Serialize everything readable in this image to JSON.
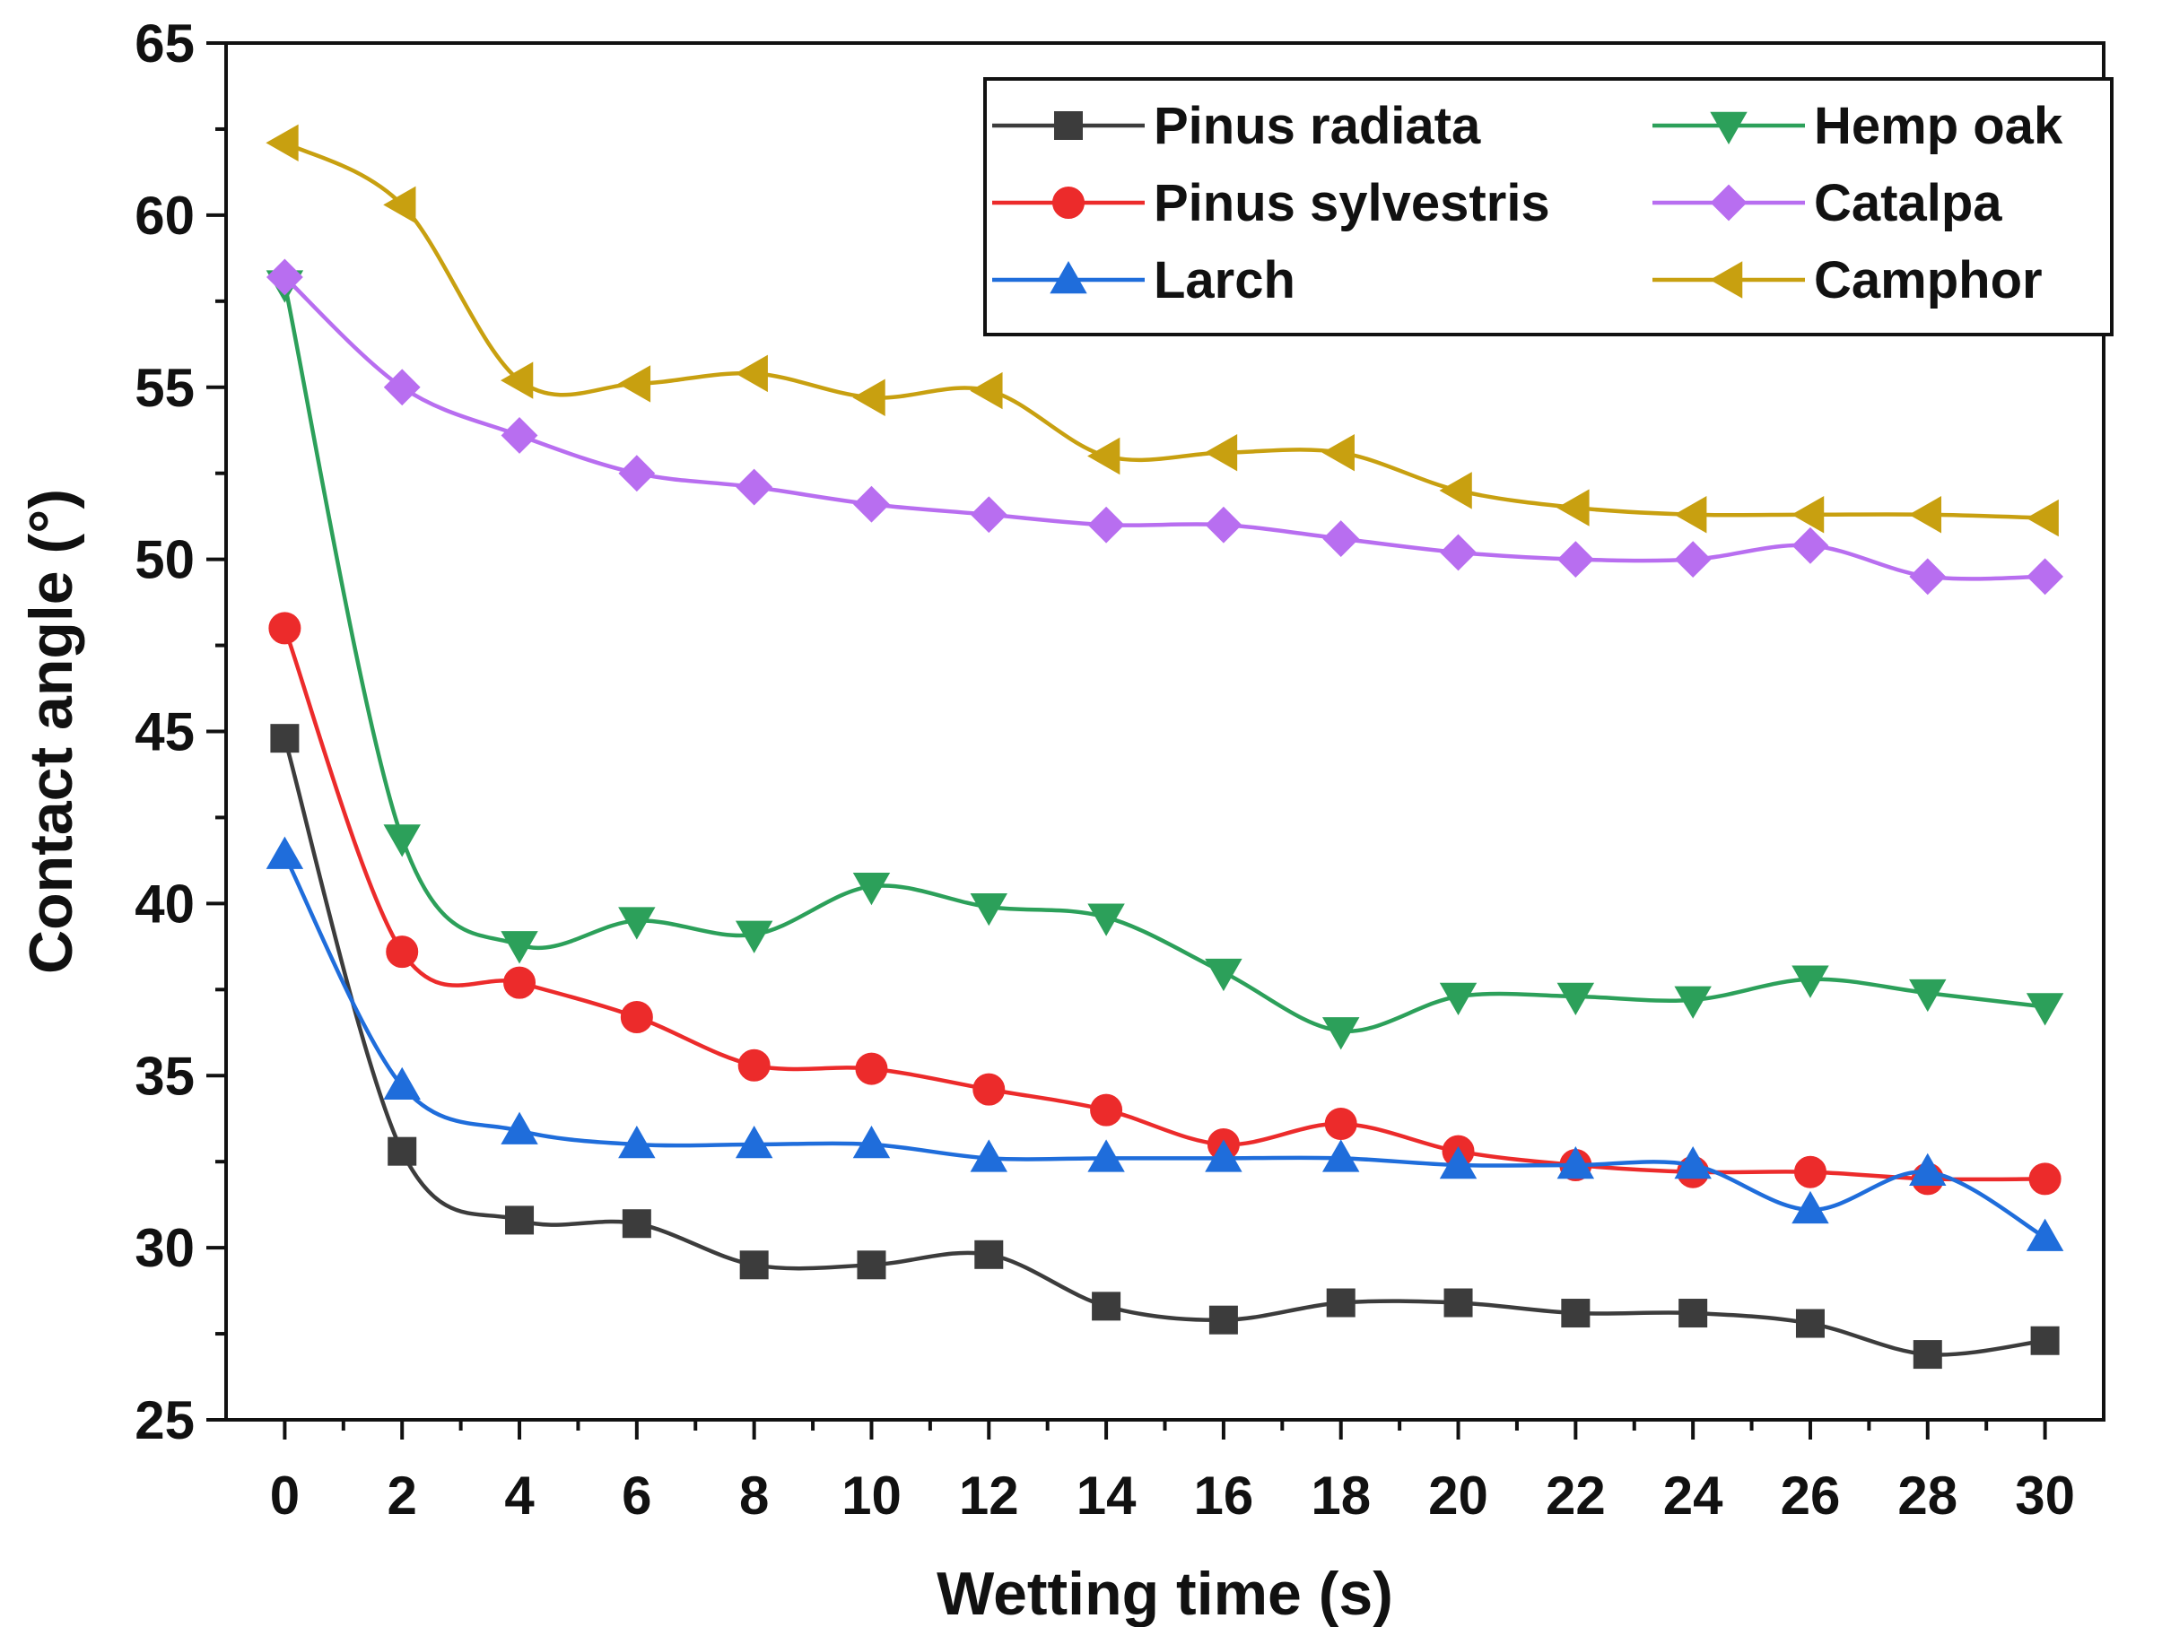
{
  "chart_data": {
    "type": "line",
    "title": "",
    "xlabel": "Wetting time (s)",
    "ylabel": "Contact angle (°)",
    "xlim": [
      -1,
      31
    ],
    "ylim": [
      25,
      65
    ],
    "xticks": [
      0,
      2,
      4,
      6,
      8,
      10,
      12,
      14,
      16,
      18,
      20,
      22,
      24,
      26,
      28,
      30
    ],
    "xtick_labels": [
      "0",
      "2",
      "4",
      "6",
      "8",
      "10",
      "12",
      "14",
      "16",
      "18",
      "20",
      "22",
      "24",
      "26",
      "28",
      "30"
    ],
    "yticks": [
      25,
      30,
      35,
      40,
      45,
      50,
      55,
      60,
      65
    ],
    "ytick_labels": [
      "25",
      "30",
      "35",
      "40",
      "45",
      "50",
      "55",
      "60",
      "65"
    ],
    "legend_position": "top-right",
    "x": [
      0,
      2,
      4,
      6,
      8,
      10,
      12,
      14,
      16,
      18,
      20,
      22,
      24,
      26,
      28,
      30
    ],
    "series": [
      {
        "name": "Pinus radiata",
        "color": "#3c3c3c",
        "marker": "square",
        "values": [
          44.8,
          32.8,
          30.8,
          30.7,
          29.5,
          29.5,
          29.8,
          28.3,
          27.9,
          28.4,
          28.4,
          28.1,
          28.1,
          27.8,
          26.9,
          27.3
        ]
      },
      {
        "name": "Pinus sylvestris",
        "color": "#ec2b2b",
        "marker": "circle",
        "values": [
          48.0,
          38.6,
          37.7,
          36.7,
          35.3,
          35.2,
          34.6,
          34.0,
          33.0,
          33.6,
          32.8,
          32.4,
          32.2,
          32.2,
          32.0,
          32.0
        ]
      },
      {
        "name": "Larch",
        "color": "#1f6ddb",
        "marker": "triangle-up",
        "values": [
          41.4,
          34.7,
          33.4,
          33.0,
          33.0,
          33.0,
          32.6,
          32.6,
          32.6,
          32.6,
          32.4,
          32.4,
          32.4,
          31.1,
          32.2,
          30.3
        ]
      },
      {
        "name": "Hemp oak",
        "color": "#2ca05a",
        "marker": "triangle-down",
        "values": [
          58.0,
          41.9,
          38.8,
          39.5,
          39.1,
          40.5,
          39.9,
          39.6,
          38.0,
          36.3,
          37.3,
          37.3,
          37.2,
          37.8,
          37.4,
          37.0
        ]
      },
      {
        "name": "Catalpa",
        "color": "#b86ef0",
        "marker": "diamond",
        "values": [
          58.2,
          55.0,
          53.6,
          52.5,
          52.1,
          51.6,
          51.3,
          51.0,
          51.0,
          50.6,
          50.2,
          50.0,
          50.0,
          50.4,
          49.5,
          49.5
        ]
      },
      {
        "name": "Camphor",
        "color": "#c8a010",
        "marker": "triangle-left",
        "values": [
          62.1,
          60.3,
          55.2,
          55.1,
          55.4,
          54.7,
          54.9,
          53.0,
          53.1,
          53.1,
          52.0,
          51.5,
          51.3,
          51.3,
          51.3,
          51.2
        ]
      }
    ]
  }
}
